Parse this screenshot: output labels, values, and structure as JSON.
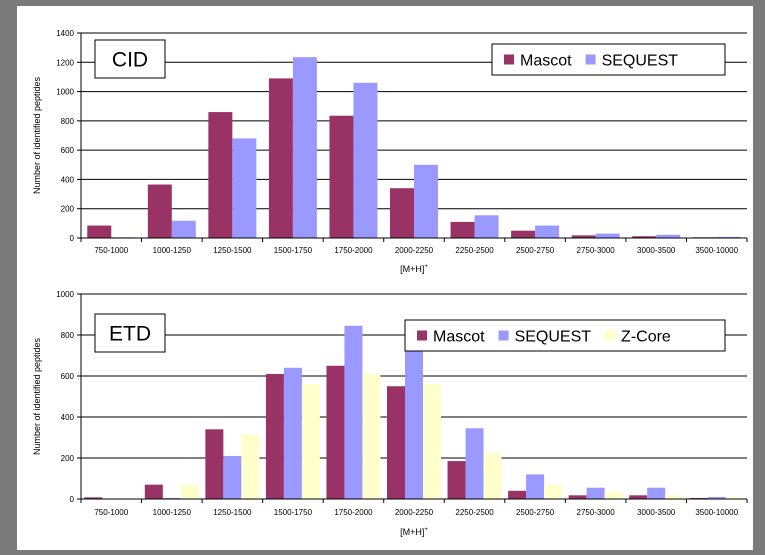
{
  "chart_data": [
    {
      "type": "bar",
      "title": "",
      "panel_label": "CID",
      "xlabel": "[M+H]+",
      "ylabel": "Number of identified peptides",
      "ylim": [
        0,
        1400
      ],
      "yticks": [
        "0",
        "200",
        "400",
        "600",
        "800",
        "1000",
        "1200",
        "1400"
      ],
      "grid": true,
      "legend_position": "top-right",
      "categories": [
        "750-1000",
        "1000-1250",
        "1250-1500",
        "1500-1750",
        "1750-2000",
        "2000-2250",
        "2250-2500",
        "2500-2750",
        "2750-3000",
        "3000-3500",
        "3500-10000"
      ],
      "series": [
        {
          "name": "Mascot",
          "color": "#993366",
          "values": [
            85,
            365,
            860,
            1090,
            835,
            340,
            110,
            50,
            18,
            12,
            5
          ]
        },
        {
          "name": "SEQUEST",
          "color": "#9999ff",
          "values": [
            5,
            118,
            680,
            1235,
            1060,
            500,
            155,
            85,
            30,
            22,
            8
          ]
        }
      ]
    },
    {
      "type": "bar",
      "title": "",
      "panel_label": "ETD",
      "xlabel": "[M+H]+",
      "ylabel": "Number of identified peptides",
      "ylim": [
        0,
        1000
      ],
      "yticks": [
        "0",
        "200",
        "400",
        "600",
        "800",
        "1000"
      ],
      "grid": true,
      "legend_position": "top-right",
      "categories": [
        "750-1000",
        "1000-1250",
        "1250-1500",
        "1500-1750",
        "1750-2000",
        "2000-2250",
        "2250-2500",
        "2500-2750",
        "2750-3000",
        "3000-3500",
        "3500-10000"
      ],
      "series": [
        {
          "name": "Mascot",
          "color": "#993366",
          "values": [
            8,
            70,
            340,
            610,
            650,
            550,
            185,
            40,
            18,
            18,
            5
          ]
        },
        {
          "name": "SEQUEST",
          "color": "#9999ff",
          "values": [
            0,
            5,
            210,
            640,
            845,
            800,
            345,
            120,
            55,
            55,
            10
          ]
        },
        {
          "name": "Z-Core",
          "color": "#ffffcc",
          "values": [
            0,
            68,
            315,
            560,
            610,
            560,
            225,
            70,
            35,
            18,
            10
          ]
        }
      ]
    }
  ]
}
